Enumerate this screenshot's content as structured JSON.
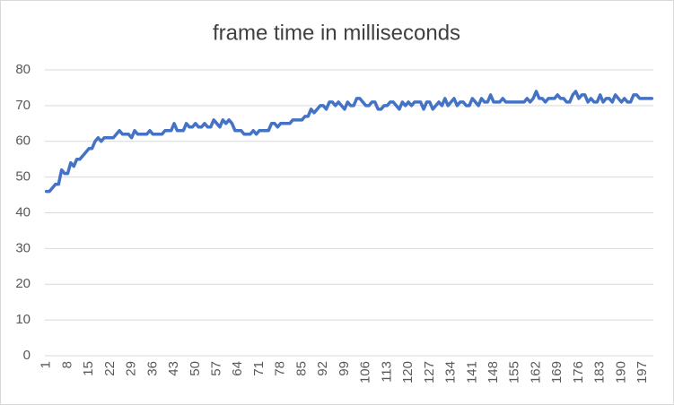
{
  "chart_data": {
    "type": "line",
    "title": "frame time in milliseconds",
    "categories": [
      1,
      null,
      null,
      null,
      null,
      null,
      null,
      8,
      null,
      null,
      null,
      null,
      null,
      null,
      15,
      null,
      null,
      null,
      null,
      null,
      null,
      22,
      null,
      null,
      null,
      null,
      null,
      null,
      29,
      null,
      null,
      null,
      null,
      null,
      null,
      36,
      null,
      null,
      null,
      null,
      null,
      null,
      43,
      null,
      null,
      null,
      null,
      null,
      null,
      50,
      null,
      null,
      null,
      null,
      null,
      null,
      57,
      null,
      null,
      null,
      null,
      null,
      null,
      64,
      null,
      null,
      null,
      null,
      null,
      null,
      71,
      null,
      null,
      null,
      null,
      null,
      null,
      78,
      null,
      null,
      null,
      null,
      null,
      null,
      85,
      null,
      null,
      null,
      null,
      null,
      null,
      92,
      null,
      null,
      null,
      null,
      null,
      null,
      99,
      null,
      null,
      null,
      null,
      null,
      null,
      106,
      null,
      null,
      null,
      null,
      null,
      null,
      113,
      null,
      null,
      null,
      null,
      null,
      null,
      120,
      null,
      null,
      null,
      null,
      null,
      null,
      127,
      null,
      null,
      null,
      null,
      null,
      null,
      134,
      null,
      null,
      null,
      null,
      null,
      null,
      141,
      null,
      null,
      null,
      null,
      null,
      null,
      148,
      null,
      null,
      null,
      null,
      null,
      null,
      155,
      null,
      null,
      null,
      null,
      null,
      null,
      162,
      null,
      null,
      null,
      null,
      null,
      null,
      169,
      null,
      null,
      null,
      null,
      null,
      null,
      176,
      null,
      null,
      null,
      null,
      null,
      null,
      183,
      null,
      null,
      null,
      null,
      null,
      null,
      190,
      null,
      null,
      null,
      null,
      null,
      null,
      197,
      null,
      null,
      null
    ],
    "values": [
      46,
      46,
      47,
      48,
      48,
      52,
      51,
      51,
      54,
      53,
      55,
      55,
      56,
      57,
      58,
      58,
      60,
      61,
      60,
      61,
      61,
      61,
      61,
      62,
      63,
      62,
      62,
      62,
      61,
      63,
      62,
      62,
      62,
      62,
      63,
      62,
      62,
      62,
      62,
      63,
      63,
      63,
      65,
      63,
      63,
      63,
      65,
      64,
      64,
      65,
      64,
      64,
      65,
      64,
      64,
      66,
      65,
      64,
      66,
      65,
      66,
      65,
      63,
      63,
      63,
      62,
      62,
      62,
      63,
      62,
      63,
      63,
      63,
      63,
      65,
      65,
      64,
      65,
      65,
      65,
      65,
      66,
      66,
      66,
      66,
      67,
      67,
      69,
      68,
      69,
      70,
      70,
      69,
      71,
      71,
      70,
      71,
      70,
      69,
      71,
      70,
      70,
      72,
      72,
      71,
      70,
      70,
      71,
      71,
      69,
      69,
      70,
      70,
      71,
      71,
      70,
      69,
      71,
      70,
      71,
      70,
      71,
      71,
      71,
      69,
      71,
      71,
      69,
      70,
      71,
      70,
      72,
      70,
      71,
      72,
      70,
      71,
      71,
      70,
      70,
      72,
      71,
      70,
      72,
      71,
      71,
      73,
      71,
      71,
      71,
      72,
      71,
      71,
      71,
      71,
      71,
      71,
      71,
      72,
      71,
      72,
      74,
      72,
      72,
      71,
      72,
      72,
      72,
      73,
      72,
      72,
      71,
      71,
      73,
      74,
      72,
      73,
      73,
      71,
      72,
      71,
      71,
      73,
      71,
      72,
      72,
      71,
      73,
      72,
      71,
      72,
      71,
      71,
      73,
      73,
      72,
      72,
      72,
      72,
      72
    ],
    "color": "#4472c4",
    "ylim": [
      0,
      80
    ],
    "yticks": [
      0,
      10,
      20,
      30,
      40,
      50,
      60,
      70,
      80
    ],
    "grid": true
  }
}
